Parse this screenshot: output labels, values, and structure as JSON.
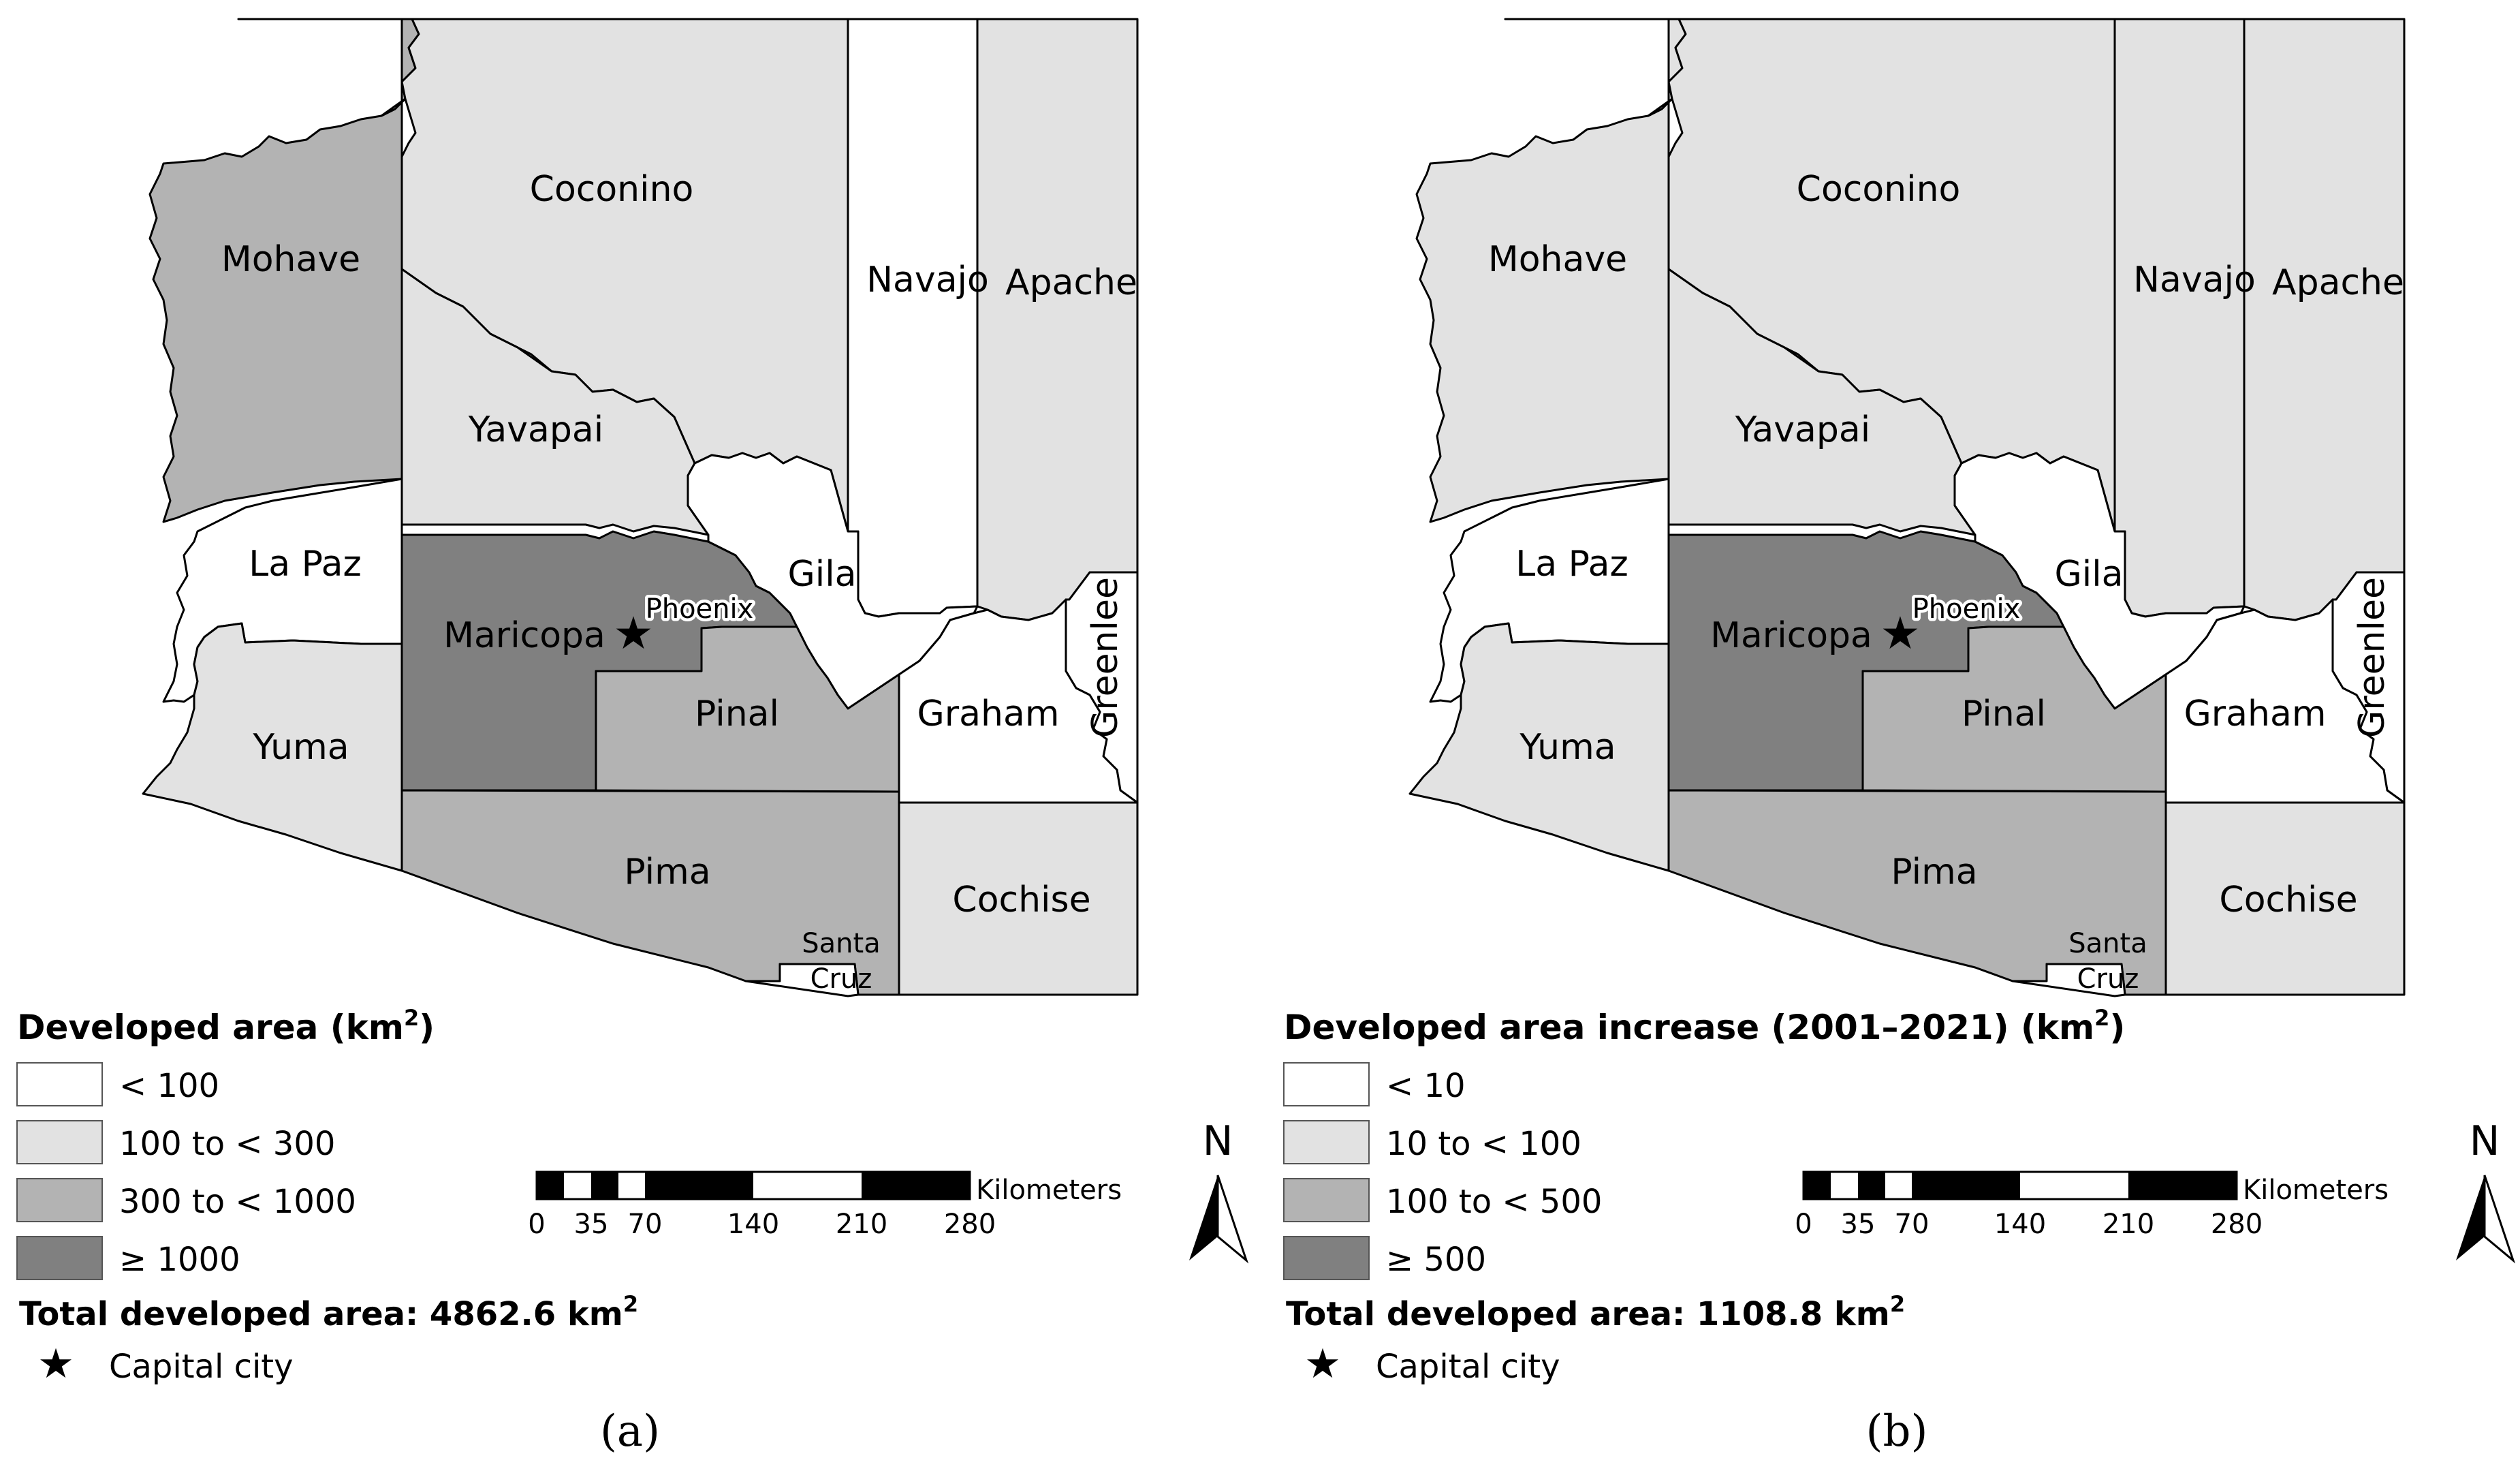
{
  "colors": {
    "class1": "#ffffff",
    "class2": "#e2e2e2",
    "class3": "#b3b3b3",
    "class4": "#808080"
  },
  "maps": [
    {
      "caption": "(a)",
      "counties": {
        "Mohave": "class3",
        "Coconino": "class2",
        "Navajo": "class1",
        "Apache": "class2",
        "Yavapai": "class2",
        "La Paz": "class1",
        "Maricopa": "class4",
        "Gila": "class1",
        "Greenlee": "class1",
        "Yuma": "class2",
        "Pinal": "class3",
        "Graham": "class1",
        "Pima": "class3",
        "Santa Cruz": "class1",
        "Cochise": "class2"
      },
      "legend": {
        "title_main": "Developed area (km",
        "title_sup": "2",
        "title_end": ")",
        "items": [
          "< 100",
          "100 to < 300",
          "300 to < 1000",
          "≥ 1000"
        ],
        "total_label": "Total developed area: 4862.6 km",
        "total_sup": "2",
        "capital": "Capital city"
      }
    },
    {
      "caption": "(b)",
      "counties": {
        "Mohave": "class2",
        "Coconino": "class2",
        "Navajo": "class2",
        "Apache": "class2",
        "Yavapai": "class2",
        "La Paz": "class1",
        "Maricopa": "class4",
        "Gila": "class1",
        "Greenlee": "class1",
        "Yuma": "class2",
        "Pinal": "class3",
        "Graham": "class1",
        "Pima": "class3",
        "Santa Cruz": "class1",
        "Cochise": "class2"
      },
      "legend": {
        "title_main": "Developed area increase (2001–2021) (km",
        "title_sup": "2",
        "title_end": ")",
        "items": [
          "< 10",
          "10 to < 100",
          "100 to < 500",
          "≥ 500"
        ],
        "total_label": "Total developed area: 1108.8 km",
        "total_sup": "2",
        "capital": "Capital city"
      }
    }
  ],
  "county_labels": {
    "mohave": "Mohave",
    "coconino": "Coconino",
    "navajo": "Navajo",
    "apache": "Apache",
    "yavapai": "Yavapai",
    "lapaz": "La Paz",
    "maricopa": "Maricopa",
    "gila": "Gila",
    "greenlee": "Greenlee",
    "yuma": "Yuma",
    "pinal": "Pinal",
    "graham": "Graham",
    "pima": "Pima",
    "santacruz_1": "Santa",
    "santacruz_2": "Cruz",
    "cochise": "Cochise",
    "phoenix": "Phoenix"
  },
  "scale_bar": {
    "unit": "Kilometers",
    "ticks": [
      "0",
      "35",
      "70",
      "140",
      "210",
      "280"
    ]
  },
  "north_label": "N"
}
